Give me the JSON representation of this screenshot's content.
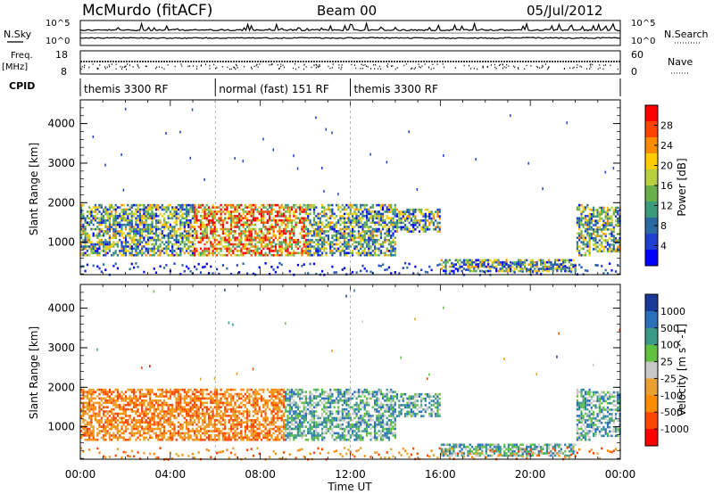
{
  "chart_data": [
    {
      "type": "line",
      "title": "McMurdo (fitACF)",
      "subtitle": "Beam 00",
      "date": "05/Jul/2012",
      "panels": {
        "sky": {
          "left_label": "N.Sky",
          "right_label": "N.Search",
          "ticks_left": [
            "10^5",
            "10^0"
          ],
          "ticks_right": [
            "10^5",
            "10^0"
          ]
        },
        "freq": {
          "left_label": "Freq.",
          "left_unit": "[MHz]",
          "right_label": "Nave",
          "ticks_left": [
            "18",
            "8"
          ],
          "ticks_right": [
            "60",
            "0"
          ],
          "ylim_left": [
            8,
            18
          ],
          "ylim_right": [
            0,
            60
          ]
        },
        "cpid": {
          "label": "CPID",
          "segments": [
            {
              "start": 0.0,
              "end": 6.0,
              "label": "themis 3300 RF"
            },
            {
              "start": 6.0,
              "end": 12.0,
              "label": "normal (fast) 151 RF"
            },
            {
              "start": 12.0,
              "end": 24.0,
              "label": "themis 3300 RF"
            }
          ]
        }
      }
    },
    {
      "type": "heatmap",
      "title": "",
      "xlabel": "",
      "ylabel": "Slant Range [km]",
      "yticks": [
        "4000",
        "3000",
        "2000",
        "1000"
      ],
      "ylim": [
        180,
        4600
      ],
      "xlim": [
        0,
        24
      ],
      "colorbar": {
        "label": "Power [dB]",
        "ticks": [
          "28",
          "24",
          "20",
          "16",
          "12",
          "8",
          "4"
        ],
        "colors": [
          "#ff0000",
          "#ff4400",
          "#ff8c00",
          "#ffcc00",
          "#b8d040",
          "#6ab04a",
          "#3a9a7a",
          "#2a6aa0",
          "#1f3fd0",
          "#0000ff"
        ]
      }
    },
    {
      "type": "heatmap",
      "title": "",
      "xlabel": "Time UT",
      "ylabel": "Slant Range [km]",
      "yticks": [
        "4000",
        "3000",
        "2000",
        "1000"
      ],
      "xticks": [
        "00:00",
        "04:00",
        "08:00",
        "12:00",
        "16:00",
        "20:00",
        "00:00"
      ],
      "ylim": [
        180,
        4600
      ],
      "xlim": [
        0,
        24
      ],
      "colorbar": {
        "label": "Velocity [m s^-1]",
        "ticks": [
          "1000",
          "500",
          "100",
          "25",
          "-25",
          "-100",
          "-500",
          "-1000"
        ],
        "colors": [
          "#1a3a9a",
          "#2a70b8",
          "#3a9a8a",
          "#60c040",
          "#c8c8c8",
          "#e8a030",
          "#ff8c00",
          "#ff4500",
          "#ff0000"
        ]
      }
    }
  ]
}
